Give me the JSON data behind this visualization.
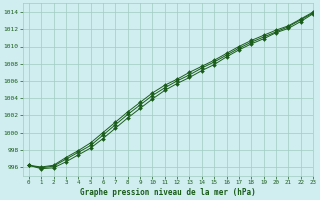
{
  "xlabel": "Graphe pression niveau de la mer (hPa)",
  "xlim": [
    -0.5,
    23
  ],
  "ylim": [
    995.0,
    1015.0
  ],
  "yticks": [
    996,
    998,
    1000,
    1002,
    1004,
    1006,
    1008,
    1010,
    1012,
    1014
  ],
  "xticks": [
    0,
    1,
    2,
    3,
    4,
    5,
    6,
    7,
    8,
    9,
    10,
    11,
    12,
    13,
    14,
    15,
    16,
    17,
    18,
    19,
    20,
    21,
    22,
    23
  ],
  "background_color": "#d0eef0",
  "grid_color": "#a0ccc0",
  "line_color": "#1a5c1a",
  "line1_y": [
    996.2,
    995.8,
    995.9,
    996.6,
    997.4,
    998.2,
    999.3,
    1000.5,
    1001.7,
    1002.8,
    1003.9,
    1004.9,
    1005.7,
    1006.4,
    1007.2,
    1007.9,
    1008.8,
    1009.6,
    1010.3,
    1010.9,
    1011.6,
    1012.1,
    1012.9,
    1013.8
  ],
  "line2_y": [
    996.2,
    995.9,
    996.1,
    996.9,
    997.7,
    998.5,
    999.7,
    1000.9,
    1002.1,
    1003.2,
    1004.3,
    1005.2,
    1006.0,
    1006.7,
    1007.5,
    1008.2,
    1009.0,
    1009.8,
    1010.5,
    1011.1,
    1011.7,
    1012.3,
    1013.1,
    1013.9
  ],
  "line3_y": [
    996.2,
    996.0,
    996.2,
    997.1,
    997.9,
    998.8,
    1000.0,
    1001.2,
    1002.4,
    1003.5,
    1004.6,
    1005.5,
    1006.2,
    1007.0,
    1007.7,
    1008.4,
    1009.2,
    1010.0,
    1010.7,
    1011.3,
    1011.9,
    1012.4,
    1013.2,
    1014.0
  ]
}
